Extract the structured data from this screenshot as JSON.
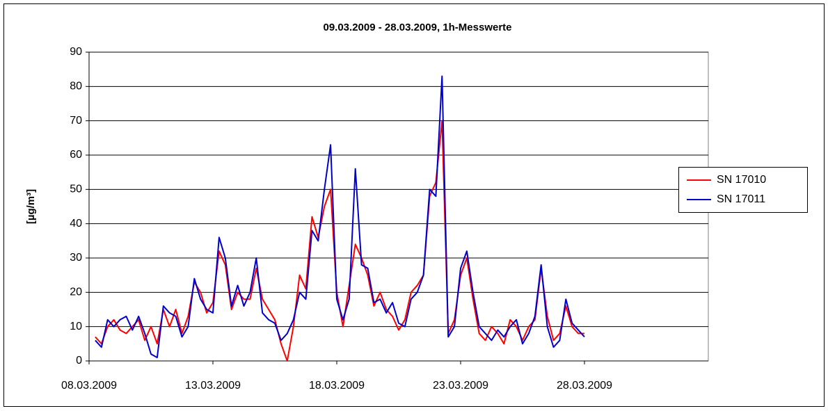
{
  "chart_data": {
    "type": "line",
    "title": "09.03.2009 - 28.03.2009, 1h-Messwerte",
    "y_label": "[µg/m³]",
    "x": [
      "2009-03-08T06:00",
      "2009-03-08T12:00",
      "2009-03-08T18:00",
      "2009-03-09T00:00",
      "2009-03-09T06:00",
      "2009-03-09T12:00",
      "2009-03-09T18:00",
      "2009-03-10T00:00",
      "2009-03-10T06:00",
      "2009-03-10T12:00",
      "2009-03-10T18:00",
      "2009-03-11T00:00",
      "2009-03-11T06:00",
      "2009-03-11T12:00",
      "2009-03-11T18:00",
      "2009-03-12T00:00",
      "2009-03-12T06:00",
      "2009-03-12T12:00",
      "2009-03-12T18:00",
      "2009-03-13T00:00",
      "2009-03-13T06:00",
      "2009-03-13T12:00",
      "2009-03-13T18:00",
      "2009-03-14T00:00",
      "2009-03-14T06:00",
      "2009-03-14T12:00",
      "2009-03-14T18:00",
      "2009-03-15T00:00",
      "2009-03-15T06:00",
      "2009-03-15T12:00",
      "2009-03-15T18:00",
      "2009-03-16T00:00",
      "2009-03-16T06:00",
      "2009-03-16T12:00",
      "2009-03-16T18:00",
      "2009-03-17T00:00",
      "2009-03-17T06:00",
      "2009-03-17T12:00",
      "2009-03-17T18:00",
      "2009-03-18T00:00",
      "2009-03-18T06:00",
      "2009-03-18T12:00",
      "2009-03-18T18:00",
      "2009-03-19T00:00",
      "2009-03-19T06:00",
      "2009-03-19T12:00",
      "2009-03-19T18:00",
      "2009-03-20T00:00",
      "2009-03-20T06:00",
      "2009-03-20T12:00",
      "2009-03-20T18:00",
      "2009-03-21T00:00",
      "2009-03-21T06:00",
      "2009-03-21T12:00",
      "2009-03-21T18:00",
      "2009-03-22T00:00",
      "2009-03-22T06:00",
      "2009-03-22T12:00",
      "2009-03-22T18:00",
      "2009-03-23T00:00",
      "2009-03-23T06:00",
      "2009-03-23T12:00",
      "2009-03-23T18:00",
      "2009-03-24T00:00",
      "2009-03-24T06:00",
      "2009-03-24T12:00",
      "2009-03-24T18:00",
      "2009-03-25T00:00",
      "2009-03-25T06:00",
      "2009-03-25T12:00",
      "2009-03-25T18:00",
      "2009-03-26T00:00",
      "2009-03-26T06:00",
      "2009-03-26T12:00",
      "2009-03-26T18:00",
      "2009-03-27T00:00",
      "2009-03-27T06:00",
      "2009-03-27T12:00",
      "2009-03-27T18:00",
      "2009-03-28T00:00"
    ],
    "series": [
      {
        "name": "SN 17010",
        "color": "#ff0000",
        "values": [
          7,
          5,
          10,
          12,
          9,
          8,
          10,
          12,
          6,
          10,
          5,
          15,
          10,
          15,
          8,
          13,
          23,
          20,
          14,
          17,
          32,
          28,
          15,
          20,
          18,
          18,
          27,
          18,
          15,
          12,
          5,
          0,
          10,
          25,
          21,
          42,
          36,
          45,
          50,
          20,
          10,
          22,
          34,
          30,
          25,
          16,
          20,
          15,
          13,
          9,
          12,
          20,
          22,
          25,
          48,
          52,
          70,
          8,
          12,
          25,
          30,
          18,
          8,
          6,
          10,
          8,
          5,
          12,
          10,
          6,
          10,
          12,
          27,
          13,
          6,
          8,
          16,
          10,
          8,
          8
        ]
      },
      {
        "name": "SN 17011",
        "color": "#0000cc",
        "values": [
          6,
          4,
          12,
          10,
          12,
          13,
          9,
          13,
          8,
          2,
          1,
          16,
          14,
          13,
          7,
          10,
          24,
          18,
          15,
          14,
          36,
          30,
          16,
          22,
          16,
          20,
          30,
          14,
          12,
          11,
          6,
          8,
          12,
          20,
          18,
          38,
          35,
          50,
          63,
          18,
          12,
          18,
          56,
          28,
          27,
          17,
          18,
          14,
          17,
          11,
          10,
          18,
          20,
          25,
          50,
          48,
          83,
          7,
          10,
          27,
          32,
          20,
          10,
          8,
          6,
          9,
          7,
          10,
          12,
          5,
          8,
          13,
          28,
          10,
          4,
          6,
          18,
          11,
          9,
          7
        ]
      }
    ],
    "xlim": [
      "2009-03-08",
      "2009-04-02"
    ],
    "xticks": [
      {
        "value": "2009-03-08",
        "label": "08.03.2009"
      },
      {
        "value": "2009-03-13",
        "label": "13.03.2009"
      },
      {
        "value": "2009-03-18",
        "label": "18.03.2009"
      },
      {
        "value": "2009-03-23",
        "label": "23.03.2009"
      },
      {
        "value": "2009-03-28",
        "label": "28.03.2009"
      }
    ],
    "ylim": [
      0,
      90
    ],
    "yticks": [
      0,
      10,
      20,
      30,
      40,
      50,
      60,
      70,
      80,
      90
    ],
    "grid": true,
    "legend": "right"
  }
}
